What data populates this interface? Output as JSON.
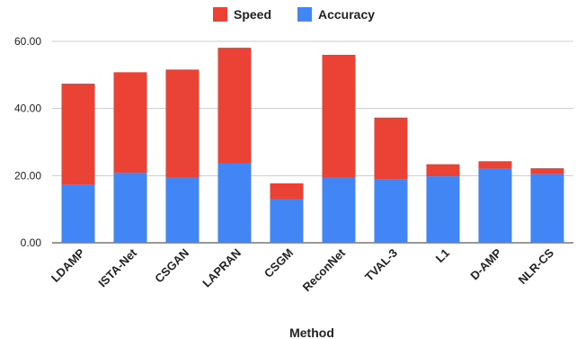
{
  "chart_data": {
    "type": "bar",
    "stacked": true,
    "categories": [
      "LDAMP",
      "ISTA-Net",
      "CSGAN",
      "LAPRAN",
      "CSGM",
      "ReconNet",
      "TVAL-3",
      "L1",
      "D-AMP",
      "NLR-CS"
    ],
    "series": [
      {
        "name": "Accuracy",
        "color": "#4285f4",
        "values": [
          17.2,
          20.8,
          19.4,
          23.7,
          13.0,
          19.4,
          19.0,
          19.8,
          22.0,
          20.4
        ]
      },
      {
        "name": "Speed",
        "color": "#ea4335",
        "values": [
          30.2,
          30.0,
          32.2,
          34.4,
          4.7,
          36.6,
          18.3,
          3.6,
          2.3,
          1.8
        ]
      }
    ],
    "legend_order": [
      "Speed",
      "Accuracy"
    ],
    "legend_position": "top",
    "xlabel": "Method",
    "ylabel": "",
    "ylim": [
      0,
      60
    ],
    "yticks": [
      "0.00",
      "20.00",
      "40.00",
      "60.00"
    ],
    "grid": true
  }
}
